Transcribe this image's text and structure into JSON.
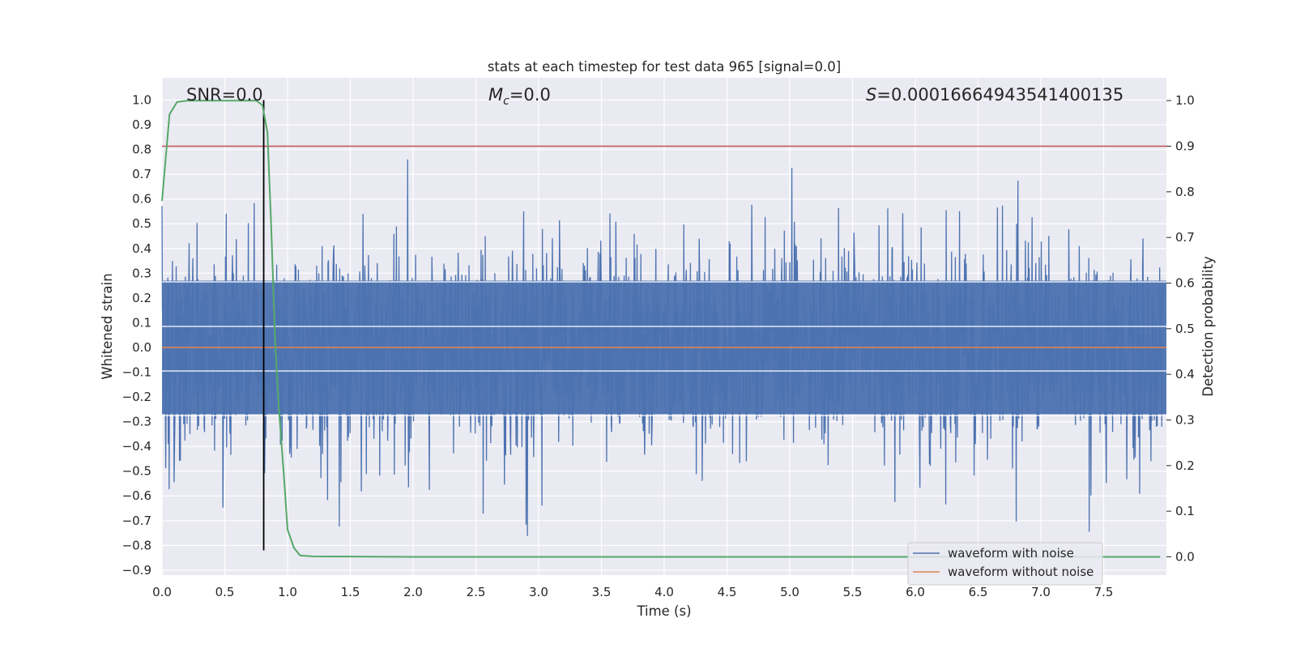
{
  "chart_data": {
    "type": "line",
    "title": "stats at each timestep for test data 965 [signal=0.0]",
    "xlabel": "Time (s)",
    "ylabel": "Whitened strain",
    "ylabel_right": "Detection probability",
    "xlim": [
      0.0,
      8.0
    ],
    "ylim": [
      -0.92,
      1.09
    ],
    "ylim_right": [
      -0.04,
      1.05
    ],
    "x_ticks": [
      "0.0",
      "0.5",
      "1.0",
      "1.5",
      "2.0",
      "2.5",
      "3.0",
      "3.5",
      "4.0",
      "4.5",
      "5.0",
      "5.5",
      "6.0",
      "6.5",
      "7.0",
      "7.5"
    ],
    "y_ticks": [
      "1.0",
      "0.9",
      "0.8",
      "0.7",
      "0.6",
      "0.5",
      "0.4",
      "0.3",
      "0.2",
      "0.1",
      "0.0",
      "−0.1",
      "−0.2",
      "−0.3",
      "−0.4",
      "−0.5",
      "−0.6",
      "−0.7",
      "−0.8",
      "−0.9"
    ],
    "y_ticks_right": [
      "1.0",
      "0.9",
      "0.8",
      "0.7",
      "0.6",
      "0.5",
      "0.4",
      "0.3",
      "0.2",
      "0.1",
      "0.0"
    ],
    "grid": true,
    "legend_position": "lower-right",
    "annotations": {
      "snr": "SNR=0.0",
      "mc_symbol": "M",
      "mc_sub": "c",
      "mc_value": "=0.0",
      "s_symbol": "S",
      "s_value": "=0.00016664943541400135"
    },
    "series": [
      {
        "name": "waveform with noise",
        "color": "#4c72b0",
        "note": "dense noise trace, amplitude roughly within -0.82 to 1.0"
      },
      {
        "name": "waveform without noise",
        "color": "#dd8452",
        "values_constant": 0.0
      }
    ],
    "threshold_line": {
      "axis": "right",
      "value": 0.9,
      "color": "#c44e52"
    },
    "event_marker": {
      "x": 0.81,
      "y_range": [
        -0.82,
        1.0
      ],
      "color": "#000000"
    },
    "detection_probability": {
      "color": "#55a868",
      "x": [
        0.0,
        0.06,
        0.12,
        0.2,
        0.3,
        0.4,
        0.5,
        0.6,
        0.7,
        0.75,
        0.8,
        0.84,
        0.87,
        0.9,
        0.93,
        0.97,
        1.0,
        1.05,
        1.1,
        1.2,
        2.0,
        3.0,
        4.0,
        5.0,
        6.0,
        7.0,
        7.95
      ],
      "y": [
        0.78,
        0.97,
        0.997,
        1.0,
        1.0,
        1.0,
        1.0,
        1.0,
        1.0,
        1.0,
        0.99,
        0.93,
        0.72,
        0.48,
        0.33,
        0.18,
        0.06,
        0.02,
        0.003,
        0.001,
        0.0,
        0.0,
        0.0,
        0.0,
        0.0,
        0.0,
        0.0
      ]
    }
  }
}
